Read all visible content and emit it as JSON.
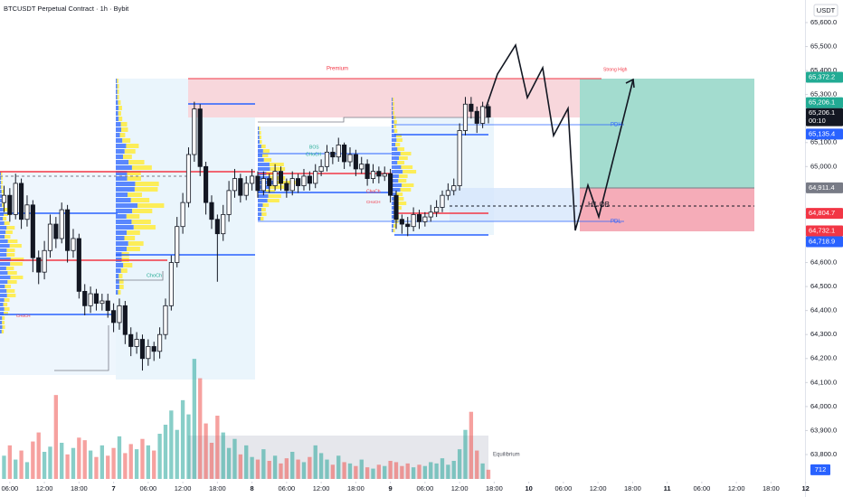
{
  "chart_data": {
    "type": "candlestick",
    "title": "BTCUSDT Perpetual Contract · 1h · Bybit",
    "currency": "USDT",
    "xlim": [
      4.3,
      143.9
    ],
    "ylim": [
      63623,
      65694
    ],
    "xticks": [
      {
        "value": 6,
        "label": "06:00"
      },
      {
        "value": 12,
        "label": "12:00"
      },
      {
        "value": 18,
        "label": "18:00"
      },
      {
        "value": 24,
        "label": "7"
      },
      {
        "value": 30,
        "label": "06:00"
      },
      {
        "value": 36,
        "label": "12:00"
      },
      {
        "value": 42,
        "label": "18:00"
      },
      {
        "value": 48,
        "label": "8"
      },
      {
        "value": 54,
        "label": "06:00"
      },
      {
        "value": 60,
        "label": "12:00"
      },
      {
        "value": 66,
        "label": "18:00"
      },
      {
        "value": 72,
        "label": "9"
      },
      {
        "value": 78,
        "label": "06:00"
      },
      {
        "value": 84,
        "label": "12:00"
      },
      {
        "value": 90,
        "label": "18:00"
      },
      {
        "value": 96,
        "label": "10"
      },
      {
        "value": 102,
        "label": "06:00"
      },
      {
        "value": 108,
        "label": "12:00"
      },
      {
        "value": 114,
        "label": "18:00"
      },
      {
        "value": 120,
        "label": "11"
      },
      {
        "value": 126,
        "label": "06:00"
      },
      {
        "value": 132,
        "label": "12:00"
      },
      {
        "value": 138,
        "label": "18:00"
      },
      {
        "value": 144,
        "label": "12"
      }
    ],
    "yticks": [
      {
        "value": 65600,
        "label": "65,600.0"
      },
      {
        "value": 65500,
        "label": "65,500.0"
      },
      {
        "value": 65400,
        "label": "65,400.0"
      },
      {
        "value": 65300,
        "label": "65,300.0"
      },
      {
        "value": 65200,
        "label": "65,200.0"
      },
      {
        "value": 65100,
        "label": "65,100.0"
      },
      {
        "value": 65000,
        "label": "65,000.0"
      },
      {
        "value": 64900,
        "label": "64,900.0"
      },
      {
        "value": 64800,
        "label": "64,800.0"
      },
      {
        "value": 64700,
        "label": "64,700.0"
      },
      {
        "value": 64600,
        "label": "64,600.0"
      },
      {
        "value": 64500,
        "label": "64,500.0"
      },
      {
        "value": 64400,
        "label": "64,400.0"
      },
      {
        "value": 64300,
        "label": "64,300.0"
      },
      {
        "value": 64200,
        "label": "64,200.0"
      },
      {
        "value": 64100,
        "label": "64,100.0"
      },
      {
        "value": 64000,
        "label": "64,000.0"
      },
      {
        "value": 63900,
        "label": "63,900.0"
      },
      {
        "value": 63800,
        "label": "63,800.0"
      }
    ],
    "up_color": "#ffffff",
    "down_color": "#131722",
    "volume_up_color": "#26a69a",
    "volume_down_color": "#ef5350",
    "volume_ylim": [
      0,
      9800
    ],
    "volume_label_color": "#2962ff",
    "x": [
      5,
      6,
      7,
      8,
      9,
      10,
      11,
      12,
      13,
      14,
      15,
      16,
      17,
      18,
      19,
      20,
      21,
      22,
      23,
      24,
      25,
      26,
      27,
      28,
      29,
      30,
      31,
      32,
      33,
      34,
      35,
      36,
      37,
      38,
      39,
      40,
      41,
      42,
      43,
      44,
      45,
      46,
      47,
      48,
      49,
      50,
      51,
      52,
      53,
      54,
      55,
      56,
      57,
      58,
      59,
      60,
      61,
      62,
      63,
      64,
      65,
      66,
      67,
      68,
      69,
      70,
      71,
      72,
      73,
      74,
      75,
      76,
      77,
      78,
      79,
      80,
      81,
      82,
      83,
      84,
      85,
      86,
      87,
      88,
      89
    ],
    "open": [
      64850,
      64880,
      64800,
      64930,
      64780,
      64840,
      64620,
      64560,
      64650,
      64760,
      64700,
      64820,
      64650,
      64700,
      64480,
      64420,
      64470,
      64430,
      64440,
      64400,
      64350,
      64420,
      64300,
      64250,
      64280,
      64200,
      64250,
      64230,
      64300,
      64420,
      64600,
      64750,
      64850,
      65050,
      65240,
      65000,
      64850,
      64780,
      64720,
      64800,
      64900,
      64950,
      64880,
      64930,
      64960,
      64900,
      64950,
      64920,
      64980,
      64930,
      64900,
      64950,
      64920,
      64960,
      64930,
      64980,
      65000,
      65060,
      65040,
      65090,
      65020,
      65050,
      64990,
      65010,
      64950,
      64980,
      64960,
      64970,
      64880,
      64780,
      64760,
      64750,
      64800,
      64770,
      64790,
      64810,
      64830,
      64880,
      64900,
      64920,
      65150,
      65260,
      65230,
      65180,
      65250
    ],
    "high": [
      64920,
      64910,
      64970,
      64950,
      64880,
      64860,
      64650,
      64690,
      64800,
      64790,
      64850,
      64840,
      64740,
      64720,
      64510,
      64500,
      64490,
      64470,
      64470,
      64430,
      64450,
      64440,
      64330,
      64310,
      64300,
      64280,
      64270,
      64330,
      64450,
      64630,
      64790,
      64890,
      65080,
      65270,
      65260,
      65020,
      64880,
      64800,
      64840,
      64940,
      64990,
      64970,
      64960,
      64990,
      64980,
      64980,
      64970,
      65010,
      65000,
      64950,
      64980,
      64970,
      64990,
      64980,
      65010,
      65030,
      65090,
      65080,
      65120,
      65100,
      65080,
      65070,
      65040,
      65030,
      65010,
      65000,
      65000,
      64990,
      64900,
      64800,
      64790,
      64830,
      64820,
      64810,
      64840,
      64860,
      64900,
      64930,
      64950,
      65180,
      65290,
      65290,
      65250,
      65270,
      65260
    ],
    "low": [
      64810,
      64770,
      64780,
      64740,
      64750,
      64560,
      64510,
      64530,
      64620,
      64660,
      64680,
      64600,
      64620,
      64450,
      64380,
      64390,
      64400,
      64400,
      64370,
      64310,
      64320,
      64260,
      64210,
      64220,
      64150,
      64170,
      64190,
      64200,
      64280,
      64400,
      64580,
      64720,
      64830,
      65020,
      64960,
      64800,
      64740,
      64520,
      64690,
      64770,
      64870,
      64850,
      64860,
      64900,
      64870,
      64880,
      64890,
      64900,
      64900,
      64870,
      64880,
      64890,
      64900,
      64900,
      64910,
      64960,
      64980,
      65010,
      65020,
      64990,
      65000,
      64960,
      64970,
      64920,
      64930,
      64930,
      64940,
      64850,
      64740,
      64720,
      64710,
      64730,
      64740,
      64750,
      64770,
      64790,
      64810,
      64860,
      64880,
      64900,
      65130,
      65200,
      65140,
      65160,
      65180
    ],
    "close": [
      64880,
      64800,
      64930,
      64780,
      64840,
      64620,
      64560,
      64650,
      64760,
      64700,
      64820,
      64650,
      64700,
      64480,
      64420,
      64470,
      64430,
      64440,
      64400,
      64350,
      64420,
      64300,
      64250,
      64280,
      64200,
      64250,
      64230,
      64300,
      64420,
      64600,
      64750,
      64850,
      65050,
      65240,
      65000,
      64850,
      64780,
      64720,
      64800,
      64900,
      64950,
      64880,
      64930,
      64960,
      64900,
      64950,
      64920,
      64980,
      64930,
      64900,
      64950,
      64920,
      64960,
      64930,
      64980,
      65000,
      65060,
      65040,
      65090,
      65020,
      65050,
      64990,
      65010,
      64950,
      64980,
      64960,
      64970,
      64880,
      64780,
      64760,
      64750,
      64800,
      64770,
      64790,
      64810,
      64830,
      64880,
      64900,
      64920,
      65150,
      65260,
      65230,
      65180,
      65250,
      65206.1
    ],
    "volume": [
      1800,
      2600,
      1500,
      2200,
      1300,
      2900,
      3600,
      2100,
      2500,
      6500,
      2800,
      1900,
      2400,
      3200,
      3000,
      2200,
      1700,
      2600,
      1800,
      2400,
      3300,
      2000,
      2700,
      2300,
      3100,
      2600,
      2200,
      3500,
      4200,
      5300,
      3800,
      6100,
      5000,
      9300,
      7800,
      4300,
      2800,
      4900,
      3600,
      2400,
      3100,
      1900,
      2600,
      1700,
      1500,
      2300,
      1400,
      1800,
      1200,
      1600,
      2100,
      1500,
      1300,
      1700,
      2600,
      2000,
      1500,
      1100,
      1800,
      1300,
      1200,
      1000,
      1500,
      900,
      800,
      1100,
      1000,
      1400,
      1300,
      1000,
      1200,
      900,
      1100,
      1000,
      1300,
      1200,
      1600,
      1100,
      1400,
      2300,
      3800,
      5200,
      2200,
      1200,
      712
    ],
    "price_labels": [
      {
        "value": 65206.1,
        "label": "65,206.1",
        "countdown": "00:10",
        "color": "#131722"
      },
      {
        "value": 65372.2,
        "label": "65,372.2",
        "color": "#22ab94"
      },
      {
        "value": 65206.1,
        "label": "65,206.1",
        "color": "#22ab94"
      },
      {
        "value": 65135.4,
        "label": "65,135.4",
        "color": "#2962ff"
      },
      {
        "value": 64911.4,
        "label": "64,911.4",
        "color": "#787b86"
      },
      {
        "value": 64804.7,
        "label": "64,804.7",
        "color": "#f23645"
      },
      {
        "value": 64732.1,
        "label": "64,732.1",
        "color": "#f23645"
      },
      {
        "value": 64718.9,
        "label": "64,718.9",
        "color": "#2962ff"
      }
    ],
    "annotations": [
      "Premium",
      "Strong High",
      "PDH",
      "PDL",
      "H1 OB",
      "Equilibrium",
      "ChoCh",
      "BOS",
      "CHoCH",
      "ChoCh",
      "CHoCH",
      "CHoCH"
    ]
  }
}
